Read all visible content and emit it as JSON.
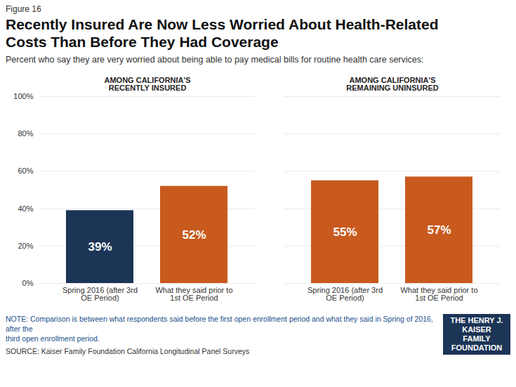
{
  "chart_data": {
    "type": "bar",
    "figure_label": "Figure 16",
    "title": "Recently Insured Are Now Less Worried About Health-Related\nCosts Than Before They Had Coverage",
    "subtitle": "Percent who say they are very worried about being able to pay medical bills for routine health care services:",
    "group_headers": [
      "AMONG CALIFORNIA'S\nRECENTLY INSURED",
      "AMONG CALIFORNIA'S\nREMAINING UNINSURED"
    ],
    "categories": [
      "What they said prior to\n1st OE Period",
      "Spring 2016 (after 3rd\nOE Period)",
      "What they said prior to\n1st OE Period",
      "Spring 2016 (after 3rd\nOE Period)"
    ],
    "values": [
      52,
      39,
      57,
      55
    ],
    "value_labels": [
      "52%",
      "39%",
      "57%",
      "55%"
    ],
    "colors": [
      "#C85A1E",
      "#1C3456",
      "#C85A1E",
      "#C85A1E"
    ],
    "data_labels": true,
    "ylim": [
      0,
      100
    ],
    "yticks": [
      {
        "value": 0,
        "label": "0%"
      },
      {
        "value": 20,
        "label": "20%"
      },
      {
        "value": 40,
        "label": "40%"
      },
      {
        "value": 60,
        "label": "60%"
      },
      {
        "value": 80,
        "label": "80%"
      },
      {
        "value": 100,
        "label": "100%"
      }
    ],
    "grid": true,
    "note": "NOTE: Comparison is between what respondents said before the first open enrollment period and what they said in Spring of 2016, after the\nthird open enrollment period.",
    "source": "SOURCE: Kaiser Family Foundation California Longitudinal Panel Surveys",
    "logo": "THE HENRY J.\nKAISER\nFAMILY\nFOUNDATION"
  }
}
